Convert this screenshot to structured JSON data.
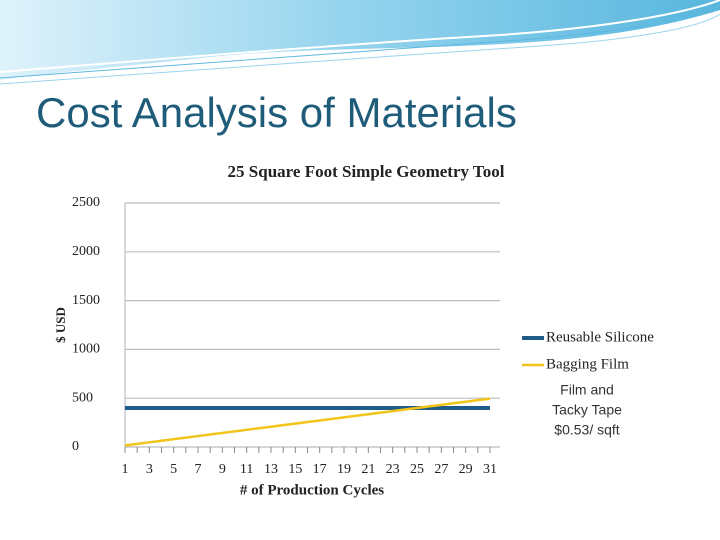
{
  "slide_title": "Cost Analysis of Materials",
  "chart_data": {
    "type": "line",
    "title": "25 Square Foot Simple Geometry Tool",
    "x_label": "# of Production Cycles",
    "y_label": "$ USD",
    "categories": [
      "1",
      null,
      "3",
      null,
      "5",
      null,
      "7",
      null,
      "9",
      null,
      "11",
      null,
      "13",
      null,
      "15",
      null,
      "17",
      null,
      "19",
      null,
      "21",
      null,
      "23",
      null,
      "25",
      null,
      "27",
      null,
      "29",
      null,
      "31"
    ],
    "series": [
      {
        "name": "Reusable Silicone",
        "color": "#1f5b87",
        "values": [
          400,
          400,
          400,
          400,
          400,
          400,
          400,
          400,
          400,
          400,
          400,
          400,
          400,
          400,
          400,
          400,
          400,
          400,
          400,
          400,
          400,
          400,
          400,
          400,
          400,
          400,
          400,
          400,
          400,
          400,
          400
        ]
      },
      {
        "name": "Bagging Film",
        "color": "#f0c419",
        "values": [
          16,
          32,
          48,
          64,
          80,
          96,
          112,
          128,
          144,
          160,
          176,
          192,
          208,
          224,
          240,
          256,
          272,
          288,
          304,
          320,
          336,
          352,
          368,
          384,
          400,
          416,
          432,
          448,
          464,
          480,
          496
        ]
      }
    ],
    "ylim": [
      0,
      2500
    ],
    "yticks": [
      0,
      500,
      1000,
      1500,
      2000,
      2500
    ],
    "grid": true,
    "legend": "right",
    "annotation": [
      "Film and",
      "Tacky Tape",
      "$0.53/ sqft"
    ]
  }
}
